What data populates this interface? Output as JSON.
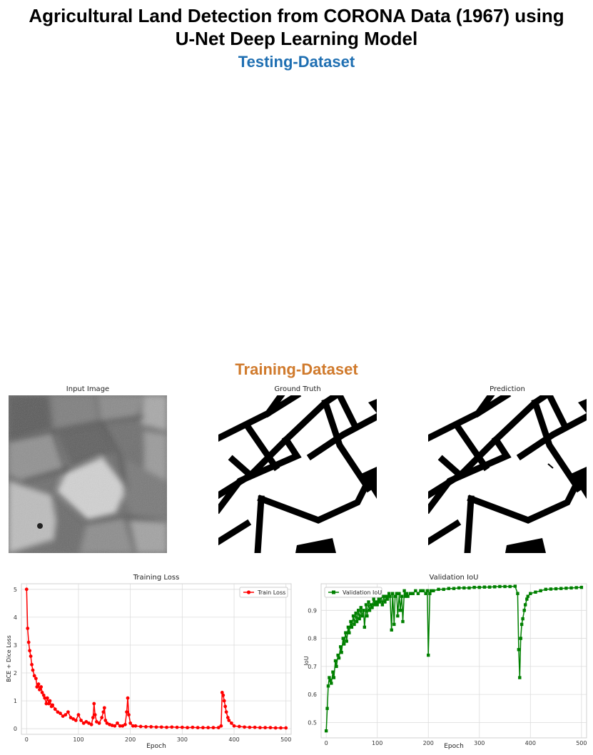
{
  "header": {
    "title_line1": "Agricultural Land Detection from CORONA Data (1967) using",
    "title_line2": "U-Net Deep Learning Model",
    "testing_label": "Testing-Dataset",
    "training_label": "Training-Dataset"
  },
  "colors": {
    "testing_label": "#1f6fb2",
    "training_label": "#d07a2c",
    "train_loss": "#ff0000",
    "val_iou": "#008000"
  },
  "panels": [
    {
      "title": "Input Image"
    },
    {
      "title": "Ground Truth"
    },
    {
      "title": "Prediction"
    }
  ],
  "chart_data": [
    {
      "type": "line",
      "title": "Training Loss",
      "xlabel": "Epoch",
      "ylabel": "BCE + Dice Loss",
      "xlim": [
        -10,
        510
      ],
      "ylim": [
        -0.2,
        5.2
      ],
      "xticks": [
        0,
        100,
        200,
        300,
        400,
        500
      ],
      "yticks": [
        0,
        1,
        2,
        3,
        4,
        5
      ],
      "grid": true,
      "legend": "top-right",
      "series": [
        {
          "name": "Train Loss",
          "marker": "circle",
          "x": [
            0,
            2,
            4,
            6,
            8,
            10,
            12,
            15,
            18,
            20,
            23,
            25,
            28,
            30,
            33,
            35,
            38,
            40,
            43,
            45,
            48,
            50,
            55,
            60,
            65,
            70,
            75,
            80,
            85,
            90,
            95,
            100,
            105,
            110,
            115,
            120,
            125,
            128,
            130,
            132,
            135,
            140,
            145,
            148,
            150,
            152,
            155,
            160,
            165,
            170,
            175,
            180,
            185,
            190,
            193,
            195,
            197,
            200,
            205,
            210,
            220,
            230,
            240,
            250,
            260,
            270,
            280,
            290,
            300,
            310,
            320,
            330,
            340,
            350,
            360,
            370,
            375,
            377,
            379,
            381,
            383,
            385,
            388,
            390,
            395,
            400,
            410,
            420,
            430,
            440,
            450,
            460,
            470,
            480,
            490,
            500
          ],
          "y": [
            5.0,
            3.6,
            3.1,
            2.8,
            2.6,
            2.3,
            2.1,
            1.9,
            1.8,
            1.5,
            1.6,
            1.4,
            1.5,
            1.3,
            1.2,
            1.1,
            0.9,
            1.1,
            0.9,
            1.0,
            0.8,
            0.85,
            0.7,
            0.6,
            0.55,
            0.45,
            0.5,
            0.6,
            0.4,
            0.35,
            0.3,
            0.5,
            0.3,
            0.2,
            0.25,
            0.2,
            0.15,
            0.4,
            0.9,
            0.5,
            0.25,
            0.2,
            0.4,
            0.6,
            0.75,
            0.3,
            0.2,
            0.15,
            0.12,
            0.1,
            0.2,
            0.1,
            0.1,
            0.15,
            0.6,
            1.1,
            0.5,
            0.2,
            0.1,
            0.1,
            0.08,
            0.07,
            0.07,
            0.06,
            0.06,
            0.05,
            0.06,
            0.05,
            0.05,
            0.04,
            0.05,
            0.04,
            0.04,
            0.04,
            0.04,
            0.04,
            0.1,
            1.3,
            1.2,
            1.0,
            0.8,
            0.6,
            0.4,
            0.3,
            0.2,
            0.1,
            0.08,
            0.06,
            0.05,
            0.05,
            0.04,
            0.04,
            0.04,
            0.03,
            0.03,
            0.03
          ]
        }
      ]
    },
    {
      "type": "line",
      "title": "Validation IoU",
      "xlabel": "Epoch",
      "ylabel": "IoU",
      "xlim": [
        -10,
        510
      ],
      "ylim": [
        0.445,
        0.995
      ],
      "xticks": [
        0,
        100,
        200,
        300,
        400,
        500
      ],
      "yticks": [
        0.5,
        0.6,
        0.7,
        0.8,
        0.9
      ],
      "grid": true,
      "legend": "top-left",
      "series": [
        {
          "name": "Validation IoU",
          "marker": "square",
          "x": [
            0,
            2,
            4,
            6,
            8,
            10,
            13,
            15,
            18,
            20,
            23,
            25,
            28,
            30,
            33,
            35,
            38,
            40,
            43,
            45,
            48,
            50,
            53,
            55,
            58,
            60,
            63,
            65,
            68,
            70,
            73,
            75,
            78,
            80,
            83,
            85,
            88,
            90,
            93,
            95,
            98,
            100,
            103,
            105,
            108,
            110,
            113,
            115,
            118,
            120,
            123,
            125,
            128,
            130,
            133,
            135,
            138,
            140,
            143,
            145,
            148,
            150,
            153,
            155,
            158,
            160,
            165,
            170,
            175,
            180,
            185,
            190,
            195,
            198,
            200,
            203,
            205,
            210,
            220,
            230,
            240,
            250,
            260,
            270,
            280,
            290,
            300,
            310,
            320,
            330,
            340,
            350,
            360,
            370,
            375,
            377,
            379,
            381,
            383,
            385,
            388,
            390,
            393,
            395,
            400,
            410,
            420,
            430,
            440,
            450,
            460,
            470,
            480,
            490,
            500
          ],
          "y": [
            0.47,
            0.55,
            0.63,
            0.66,
            0.65,
            0.64,
            0.68,
            0.66,
            0.72,
            0.7,
            0.74,
            0.73,
            0.77,
            0.75,
            0.8,
            0.78,
            0.82,
            0.79,
            0.84,
            0.82,
            0.86,
            0.84,
            0.88,
            0.85,
            0.89,
            0.86,
            0.9,
            0.87,
            0.91,
            0.88,
            0.9,
            0.84,
            0.92,
            0.88,
            0.93,
            0.9,
            0.92,
            0.91,
            0.94,
            0.92,
            0.93,
            0.92,
            0.94,
            0.93,
            0.95,
            0.92,
            0.95,
            0.93,
            0.95,
            0.94,
            0.96,
            0.95,
            0.83,
            0.96,
            0.85,
            0.95,
            0.96,
            0.88,
            0.96,
            0.9,
            0.95,
            0.86,
            0.97,
            0.95,
            0.96,
            0.95,
            0.96,
            0.96,
            0.97,
            0.96,
            0.97,
            0.97,
            0.96,
            0.97,
            0.74,
            0.96,
            0.97,
            0.97,
            0.975,
            0.975,
            0.978,
            0.978,
            0.98,
            0.98,
            0.98,
            0.982,
            0.982,
            0.983,
            0.983,
            0.984,
            0.985,
            0.985,
            0.985,
            0.986,
            0.96,
            0.76,
            0.66,
            0.8,
            0.85,
            0.87,
            0.9,
            0.92,
            0.94,
            0.95,
            0.96,
            0.965,
            0.97,
            0.975,
            0.976,
            0.977,
            0.978,
            0.979,
            0.98,
            0.981,
            0.982
          ]
        }
      ]
    }
  ]
}
